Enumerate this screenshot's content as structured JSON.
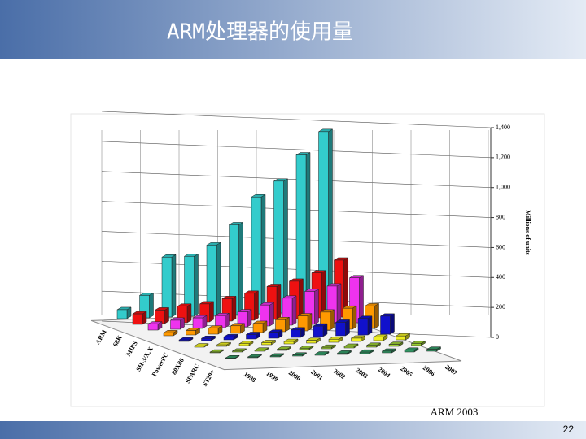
{
  "slide_title": "ARM处理器的使用量",
  "caption": "ARM 2003",
  "page_number": "22",
  "chart_data": {
    "type": "bar3d",
    "categories": [
      "1998",
      "1999",
      "2000",
      "2001",
      "2002",
      "2003",
      "2004",
      "2005",
      "2006",
      "2007"
    ],
    "y_axis_label": "Millions of units",
    "ylim": [
      0,
      1400
    ],
    "yticks": [
      0,
      200,
      400,
      600,
      800,
      {
        "value": 1000,
        "label": "1,000"
      },
      {
        "value": 1200,
        "label": "1,200"
      },
      {
        "value": 1400,
        "label": "1,400"
      }
    ],
    "grid": true,
    "series": [
      {
        "name": "ARM",
        "color": "#33cccc",
        "values": [
          60,
          150,
          400,
          400,
          470,
          600,
          780,
          880,
          1050,
          1200
        ]
      },
      {
        "name": "68K",
        "color": "#ee1111",
        "values": [
          70,
          90,
          110,
          120,
          150,
          180,
          220,
          250,
          300,
          380
        ]
      },
      {
        "name": "MIPS",
        "color": "#ee33ee",
        "values": [
          40,
          60,
          70,
          80,
          100,
          140,
          180,
          220,
          250,
          300
        ]
      },
      {
        "name": "SH-3/X.X",
        "color": "#ff9900",
        "values": [
          20,
          30,
          40,
          50,
          60,
          80,
          100,
          120,
          140,
          150
        ]
      },
      {
        "name": "PowerPC",
        "color": "#1111cc",
        "values": [
          10,
          15,
          20,
          30,
          40,
          50,
          70,
          90,
          110,
          120
        ]
      },
      {
        "name": "80X86",
        "color": "#eeee22",
        "values": [
          8,
          10,
          12,
          14,
          16,
          18,
          20,
          22,
          24,
          26
        ]
      },
      {
        "name": "SPARC",
        "color": "#99cc33",
        "values": [
          5,
          6,
          7,
          8,
          9,
          10,
          11,
          12,
          13,
          14
        ]
      },
      {
        "name": "ST20+",
        "color": "#339966",
        "values": [
          4,
          5,
          6,
          7,
          8,
          9,
          10,
          11,
          12,
          13
        ]
      }
    ]
  }
}
